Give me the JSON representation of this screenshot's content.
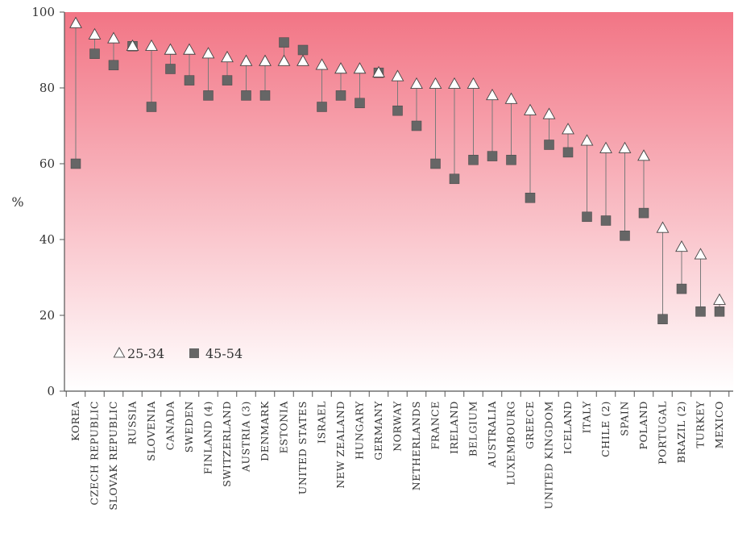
{
  "chart_data": {
    "type": "scatter",
    "title": "",
    "xlabel": "",
    "ylabel": "%",
    "ylim": [
      0,
      100
    ],
    "yticks": [
      0,
      20,
      40,
      60,
      80,
      100
    ],
    "grid": false,
    "legend_placement": "bottom-left",
    "categories": [
      "KOREA",
      "CZECH REPUBLIC",
      "SLOVAK REPUBLIC",
      "RUSSIA",
      "SLOVENIA",
      "CANADA",
      "SWEDEN",
      "FINLAND (4)",
      "SWITZERLAND",
      "AUSTRIA (3)",
      "DENMARK",
      "ESTONIA",
      "UNITED STATES",
      "ISRAEL",
      "NEW ZEALAND",
      "HUNGARY",
      "GERMANY",
      "NORWAY",
      "NETHERLANDS",
      "FRANCE",
      "IRELAND",
      "BELGIUM",
      "AUSTRALIA",
      "LUXEMBOURG",
      "GREECE",
      "UNITED KINGDOM",
      "ICELAND",
      "ITALY",
      "CHILE (2)",
      "SPAIN",
      "POLAND",
      "PORTUGAL",
      "BRAZIL (2)",
      "TURKEY",
      "MEXICO"
    ],
    "series": [
      {
        "name": "25-34",
        "marker": "triangle",
        "color": "#ffffff",
        "values": [
          97,
          94,
          93,
          91,
          91,
          90,
          90,
          89,
          88,
          87,
          87,
          87,
          87,
          86,
          85,
          85,
          84,
          83,
          81,
          81,
          81,
          81,
          78,
          77,
          74,
          73,
          69,
          66,
          64,
          64,
          62,
          43,
          38,
          36,
          24
        ]
      },
      {
        "name": "45-54",
        "marker": "square",
        "color": "#666666",
        "values": [
          60,
          89,
          86,
          91,
          75,
          85,
          82,
          78,
          82,
          78,
          78,
          92,
          90,
          75,
          78,
          76,
          84,
          74,
          70,
          60,
          56,
          61,
          62,
          61,
          51,
          65,
          63,
          46,
          45,
          41,
          47,
          19,
          27,
          21,
          21
        ]
      }
    ],
    "colors": {
      "gradient_top": "#f27585",
      "gradient_bottom": "#ffffff",
      "axis": "#555555",
      "connector": "#7a7a7a"
    }
  }
}
